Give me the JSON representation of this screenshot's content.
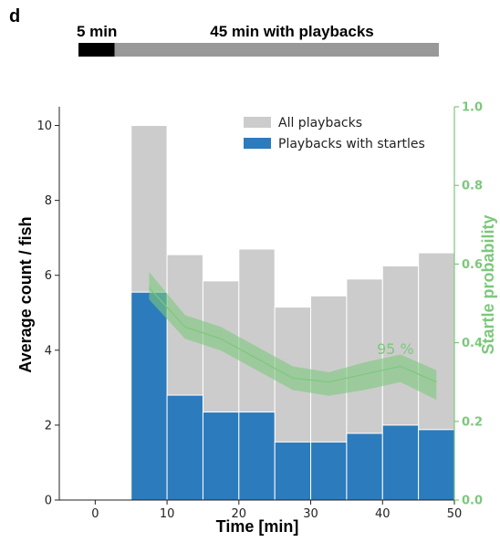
{
  "panel_label": "d",
  "timeline": {
    "pre_label": "5 min",
    "post_label": "45 min with playbacks",
    "pre_minutes": 5,
    "post_minutes": 45,
    "pre_color": "#000000",
    "post_color": "#999999"
  },
  "chart_data": {
    "type": "bar",
    "xlabel": "Time [min]",
    "ylabel": "Average count / fish",
    "y2label": "Startle probability",
    "xlim": [
      -5,
      50
    ],
    "ylim": [
      0,
      10.5
    ],
    "y2lim": [
      0,
      1.0
    ],
    "xticks": [
      0,
      10,
      20,
      30,
      40,
      50
    ],
    "yticks": [
      0,
      2,
      4,
      6,
      8,
      10
    ],
    "y2ticks": [
      0.0,
      0.2,
      0.4,
      0.6,
      0.8,
      1.0
    ],
    "y2ticklabels": [
      "0.0",
      "0.2",
      "0.4",
      "0.6",
      "0.8",
      "1.0"
    ],
    "bin_edges": [
      5,
      10,
      15,
      20,
      25,
      30,
      35,
      40,
      45,
      50
    ],
    "series": [
      {
        "name": "All playbacks",
        "color": "#cccccc",
        "values": [
          10.0,
          6.55,
          5.85,
          6.7,
          5.15,
          5.45,
          5.9,
          6.25,
          6.6
        ]
      },
      {
        "name": "Playbacks with startles",
        "color": "#2c7bbd",
        "values": [
          5.55,
          2.8,
          2.35,
          2.35,
          1.55,
          1.55,
          1.78,
          2.0,
          1.88
        ]
      }
    ],
    "startle_probability": {
      "color": "#7cc87c",
      "x": [
        7.5,
        12.5,
        17.5,
        22.5,
        27.5,
        32.5,
        37.5,
        42.5,
        47.5
      ],
      "mean": [
        0.54,
        0.44,
        0.41,
        0.36,
        0.31,
        0.3,
        0.32,
        0.34,
        0.3
      ],
      "lower": [
        0.51,
        0.41,
        0.38,
        0.33,
        0.28,
        0.265,
        0.28,
        0.3,
        0.255
      ],
      "upper": [
        0.58,
        0.47,
        0.44,
        0.39,
        0.34,
        0.325,
        0.35,
        0.37,
        0.33
      ],
      "ci_label": "95 %"
    },
    "legend_position": "top-right",
    "grid": false
  }
}
